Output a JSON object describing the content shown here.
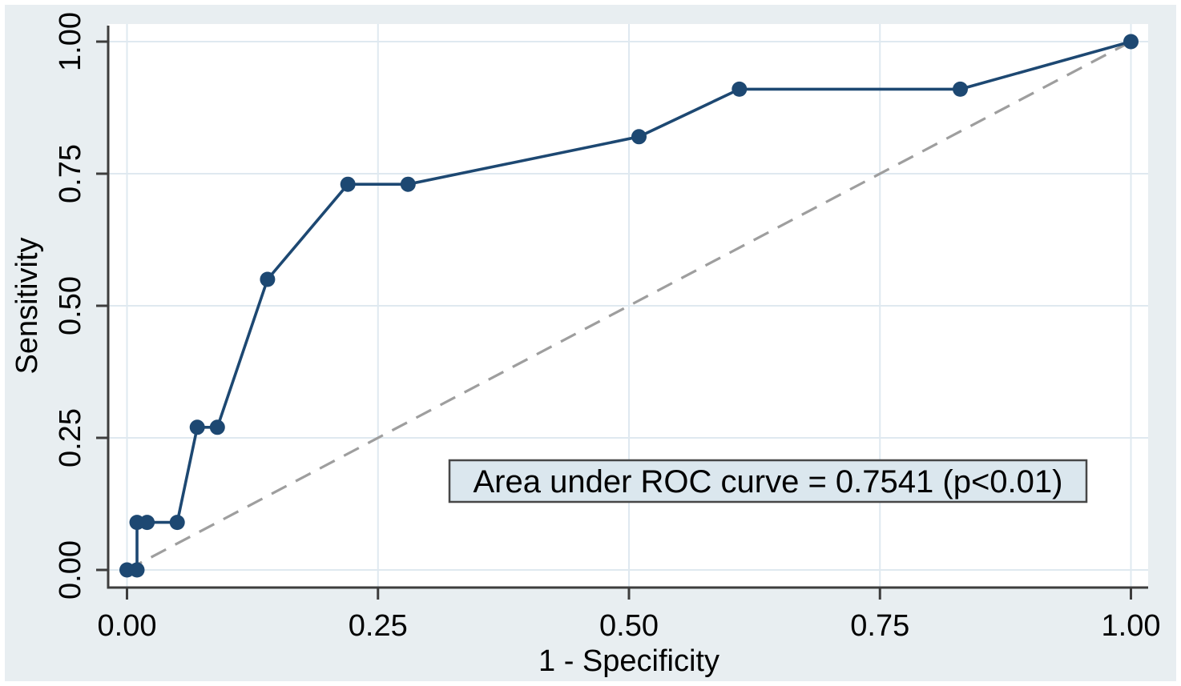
{
  "figure": {
    "background_color": "#e8eef1",
    "plot_background_color": "#ffffff",
    "grid_color": "#dfe9f0",
    "axis_color": "#3d3d3d",
    "text_color": "#000000"
  },
  "chart_data": {
    "type": "line",
    "title": "",
    "xlabel": "1 - Specificity",
    "ylabel": "Sensitivity",
    "xlim": [
      0,
      1
    ],
    "ylim": [
      0,
      1
    ],
    "grid": "on",
    "legend": "none",
    "x_ticks": {
      "values": [
        0,
        0.25,
        0.5,
        0.75,
        1
      ],
      "labels": [
        "0.00",
        "0.25",
        "0.50",
        "0.75",
        "1.00"
      ]
    },
    "y_ticks": {
      "values": [
        0,
        0.25,
        0.5,
        0.75,
        1
      ],
      "labels": [
        "0.00",
        "0.25",
        "0.50",
        "0.75",
        "1.00"
      ]
    },
    "series": [
      {
        "name": "ROC curve",
        "style": "solid-line-with-markers",
        "color": "#1d4872",
        "points": [
          [
            0.0,
            0.0
          ],
          [
            0.01,
            0.0
          ],
          [
            0.01,
            0.09
          ],
          [
            0.02,
            0.09
          ],
          [
            0.05,
            0.09
          ],
          [
            0.07,
            0.27
          ],
          [
            0.09,
            0.27
          ],
          [
            0.14,
            0.55
          ],
          [
            0.22,
            0.73
          ],
          [
            0.28,
            0.73
          ],
          [
            0.51,
            0.82
          ],
          [
            0.61,
            0.91
          ],
          [
            0.83,
            0.91
          ],
          [
            1.0,
            1.0
          ]
        ]
      },
      {
        "name": "Reference chance line",
        "style": "dashed-line",
        "color": "#9e9e9e",
        "points": [
          [
            0,
            0
          ],
          [
            1,
            1
          ]
        ]
      }
    ],
    "annotation": {
      "text": "Area under ROC curve = 0.7541 (p<0.01)",
      "auc": 0.7541,
      "p_value": "p<0.01",
      "box_fill": "#dbe7ee",
      "box_border": "#474747"
    }
  }
}
